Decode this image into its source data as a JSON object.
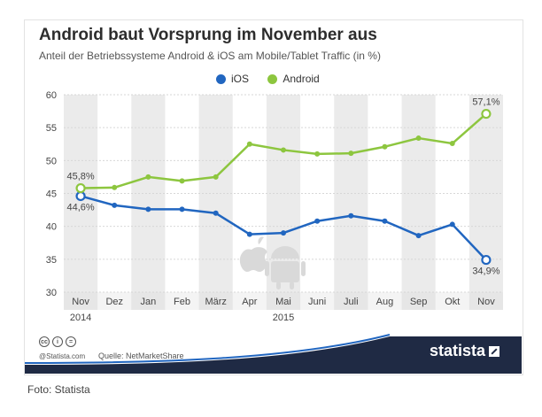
{
  "title": "Android baut Vorsprung im November aus",
  "subtitle": "Anteil der Betriebssysteme Android & iOS am Mobile/Tablet Traffic (in %)",
  "legend": {
    "ios": "iOS",
    "android": "Android"
  },
  "colors": {
    "ios": "#2166c0",
    "android": "#8dc63f",
    "band": "#ebebeb",
    "footer_bar": "#1f2a44",
    "accent_line": "#2166c0"
  },
  "footer": {
    "copyright": "@Statista.com",
    "source": "Quelle: NetMarketShare",
    "brand": "statista",
    "license_icons": [
      "cc-icon",
      "person-icon",
      "equals-icon"
    ]
  },
  "photo_credit": "Foto: Statista",
  "chart_data": {
    "type": "line",
    "categories": [
      "Nov",
      "Dez",
      "Jan",
      "Feb",
      "März",
      "Apr",
      "Mai",
      "Juni",
      "Juli",
      "Aug",
      "Sep",
      "Okt",
      "Nov"
    ],
    "year_labels": [
      {
        "label": "2014",
        "category_index": 0
      },
      {
        "label": "2015",
        "category_index": 6
      }
    ],
    "series": [
      {
        "name": "iOS",
        "color": "#2166c0",
        "values": [
          44.6,
          43.2,
          42.6,
          42.6,
          42.0,
          38.8,
          39.0,
          40.8,
          41.6,
          40.8,
          38.6,
          40.3,
          34.9
        ],
        "labels": {
          "0": "44,6%",
          "12": "34,9%"
        }
      },
      {
        "name": "Android",
        "color": "#8dc63f",
        "values": [
          45.8,
          45.9,
          47.5,
          46.9,
          47.5,
          52.5,
          51.6,
          51.0,
          51.1,
          52.1,
          53.4,
          52.6,
          57.1
        ],
        "labels": {
          "0": "45,8%",
          "12": "57,1%"
        }
      }
    ],
    "ylim": [
      30,
      60
    ],
    "yticks": [
      30,
      35,
      40,
      45,
      50,
      55,
      60
    ],
    "grid": true,
    "legend_position": "top-center"
  }
}
